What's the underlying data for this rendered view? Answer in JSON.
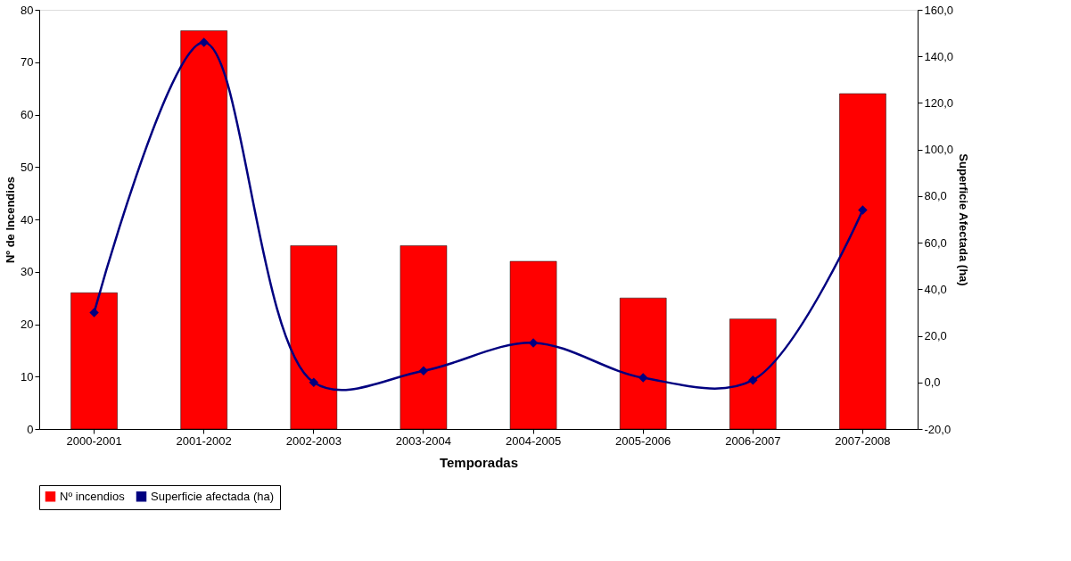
{
  "chart_data": {
    "type": "bar",
    "xlabel": "Temporadas",
    "ylabel": "Nº de Incendios",
    "y2label": "Superficie Afectada (ha)",
    "categories": [
      "2000-2001",
      "2001-2002",
      "2002-2003",
      "2003-2004",
      "2004-2005",
      "2005-2006",
      "2006-2007",
      "2007-2008"
    ],
    "series": [
      {
        "name": "Nº incendios",
        "color": "#ff0000",
        "values": [
          26,
          76,
          35,
          35,
          32,
          25,
          21,
          64
        ]
      },
      {
        "name": "Superficie afectada (ha)",
        "type": "line",
        "axis": "y2",
        "color": "#000080",
        "marker": "diamond",
        "values": [
          30,
          146,
          0,
          5,
          17,
          2,
          1,
          74
        ]
      }
    ],
    "ylim": [
      0,
      80
    ],
    "yticks": [
      0,
      10,
      20,
      30,
      40,
      50,
      60,
      70,
      80
    ],
    "y2lim": [
      -20,
      160
    ],
    "y2ticks": [
      {
        "value": -20,
        "label": "-20,0"
      },
      {
        "value": 0,
        "label": "0,0"
      },
      {
        "value": 20,
        "label": "20,0"
      },
      {
        "value": 40,
        "label": "40,0"
      },
      {
        "value": 60,
        "label": "60,0"
      },
      {
        "value": 80,
        "label": "80,0"
      },
      {
        "value": 100,
        "label": "100,0"
      },
      {
        "value": 120,
        "label": "120,0"
      },
      {
        "value": 140,
        "label": "140,0"
      },
      {
        "value": 160,
        "label": "160,0"
      }
    ],
    "grid": false,
    "legend": "bottom"
  }
}
